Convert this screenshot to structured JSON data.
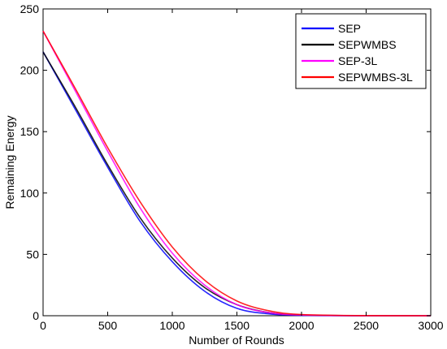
{
  "chart_data": {
    "type": "line",
    "xlabel": "Number of Rounds",
    "ylabel": "Remaining Energy",
    "xlim": [
      0,
      3000
    ],
    "ylim": [
      0,
      250
    ],
    "xticks": [
      0,
      500,
      1000,
      1500,
      2000,
      2500,
      3000
    ],
    "yticks": [
      0,
      50,
      100,
      150,
      200,
      250
    ],
    "grid": false,
    "legend_position": "top-right",
    "series": [
      {
        "name": "SEP",
        "color": "#0000ff",
        "x": [
          0,
          250,
          500,
          750,
          1000,
          1250,
          1500,
          1750,
          2000,
          2500,
          3000
        ],
        "y": [
          215,
          168,
          121,
          77,
          44,
          20,
          6,
          1.5,
          0.3,
          0,
          0
        ]
      },
      {
        "name": "SEPWMBS",
        "color": "#000000",
        "x": [
          0,
          250,
          500,
          750,
          1000,
          1250,
          1500,
          1750,
          2000,
          2500,
          3000
        ],
        "y": [
          215,
          170,
          123,
          80,
          47,
          23,
          9,
          2.5,
          0.6,
          0,
          0
        ]
      },
      {
        "name": "SEP-3L",
        "color": "#ff00ff",
        "x": [
          0,
          250,
          500,
          750,
          1000,
          1250,
          1500,
          1750,
          2000,
          2500,
          3000
        ],
        "y": [
          232,
          183,
          134,
          88,
          51,
          25,
          9,
          2.5,
          0.6,
          0,
          0
        ]
      },
      {
        "name": "SEPWMBS-3L",
        "color": "#ff0000",
        "x": [
          0,
          250,
          500,
          750,
          1000,
          1250,
          1500,
          1750,
          2000,
          2500,
          3000
        ],
        "y": [
          232,
          185,
          137,
          93,
          56,
          29,
          12,
          4,
          1,
          0.1,
          0
        ]
      }
    ]
  }
}
